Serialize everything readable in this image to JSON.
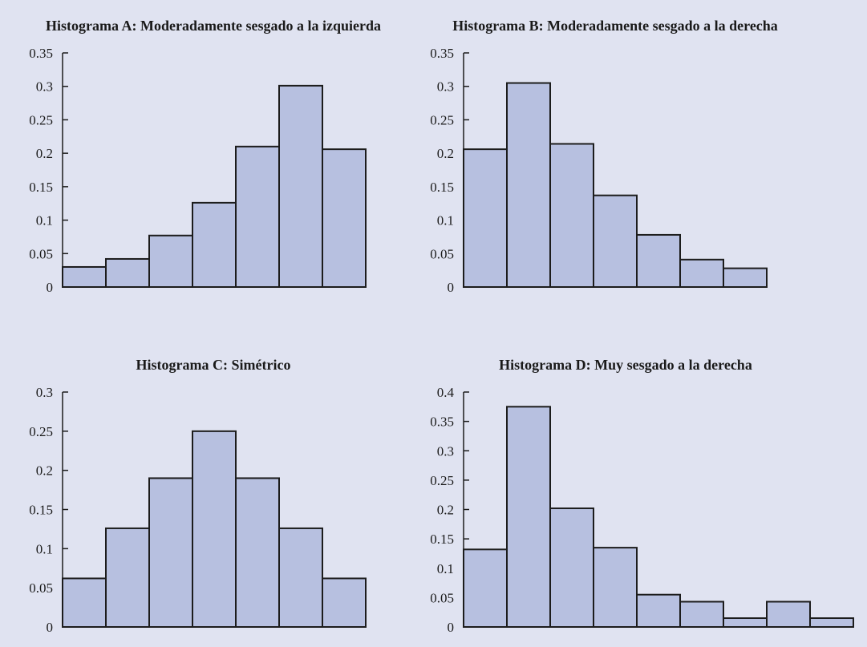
{
  "colors": {
    "background": "#e0e3f1",
    "bar_fill": "#b7c0e0",
    "bar_stroke": "#1c1c1c",
    "axis": "#1c1c1c",
    "text": "#1a1a1a"
  },
  "chart_data": [
    {
      "type": "bar",
      "title": "Histograma A: Moderadamente sesgado a la izquierda",
      "xlabel": "",
      "ylabel": "",
      "ylim": [
        0,
        0.35
      ],
      "yticks": [
        "0",
        "0.05",
        "0.1",
        "0.15",
        "0.2",
        "0.25",
        "0.3",
        "0.35"
      ],
      "values": [
        0.03,
        0.042,
        0.077,
        0.126,
        0.21,
        0.301,
        0.206
      ],
      "grid": false,
      "legend": "none"
    },
    {
      "type": "bar",
      "title": "Histograma B: Moderadamente sesgado a la derecha",
      "xlabel": "",
      "ylabel": "",
      "ylim": [
        0,
        0.35
      ],
      "yticks": [
        "0",
        "0.05",
        "0.1",
        "0.15",
        "0.2",
        "0.25",
        "0.3",
        "0.35"
      ],
      "values": [
        0.206,
        0.305,
        0.214,
        0.137,
        0.078,
        0.041,
        0.028
      ],
      "grid": false,
      "legend": "none"
    },
    {
      "type": "bar",
      "title": "Histograma C: Simétrico",
      "xlabel": "",
      "ylabel": "",
      "ylim": [
        0,
        0.3
      ],
      "yticks": [
        "0",
        "0.05",
        "0.1",
        "0.15",
        "0.2",
        "0.25",
        "0.3"
      ],
      "values": [
        0.062,
        0.126,
        0.19,
        0.25,
        0.19,
        0.126,
        0.062
      ],
      "grid": false,
      "legend": "none"
    },
    {
      "type": "bar",
      "title": "Histograma D: Muy sesgado a la derecha",
      "xlabel": "",
      "ylabel": "",
      "ylim": [
        0,
        0.4
      ],
      "yticks": [
        "0",
        "0.05",
        "0.1",
        "0.15",
        "0.2",
        "0.25",
        "0.3",
        "0.35",
        "0.4"
      ],
      "values": [
        0.132,
        0.375,
        0.202,
        0.135,
        0.055,
        0.043,
        0.015,
        0.043,
        0.015
      ],
      "grid": false,
      "legend": "none"
    }
  ]
}
